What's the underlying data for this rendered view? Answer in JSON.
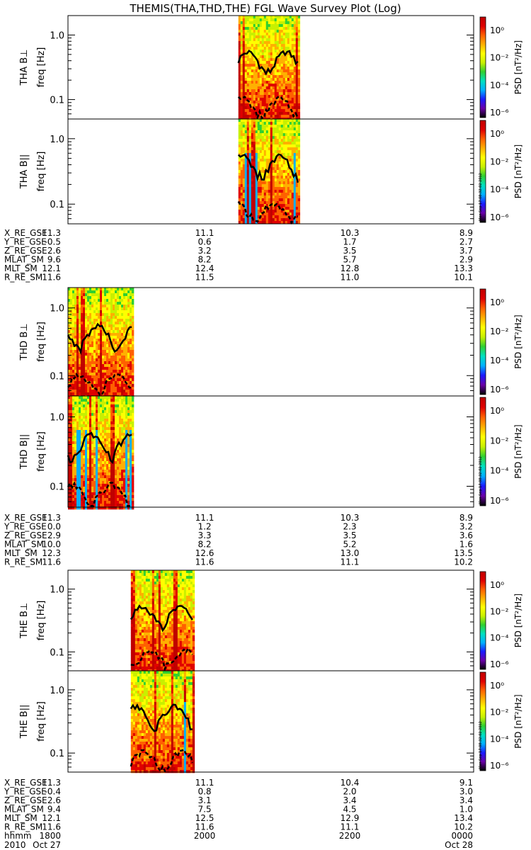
{
  "title": "THEMIS(THA,THD,THE) FGL Wave Survey Plot (Log)",
  "colorbar": {
    "label": "PSD [nT²/Hz]",
    "ticks": [
      "10⁰",
      "10⁻²",
      "10⁻⁴",
      "10⁻⁶"
    ],
    "stamp": "Mon Sep 17 08:32:02 2012",
    "colors": [
      "#000000",
      "#6a00a8",
      "#1a1aff",
      "#00b0ff",
      "#00e0c0",
      "#30d030",
      "#c8f000",
      "#ffff00",
      "#ffb000",
      "#ff6000",
      "#e00000",
      "#c00000"
    ]
  },
  "chart_data": [
    {
      "type": "heatmap",
      "probe": "THA",
      "panels": [
        {
          "ylabel": "THA B⊥",
          "yunit": "freq [Hz]",
          "yticks": [
            "1.0",
            "0.1"
          ],
          "yscale": "log"
        },
        {
          "ylabel": "THA B||",
          "yunit": "freq [Hz]",
          "yticks": [
            "1.0",
            "0.1"
          ],
          "yscale": "log"
        }
      ],
      "data_interval": [
        0.42,
        0.57
      ],
      "ephemeris": [
        {
          "label": "X_RE_GSE",
          "values": [
            "11.3",
            "11.1",
            "10.3",
            "8.9"
          ]
        },
        {
          "label": "Y_RE_GSE",
          "values": [
            "-0.5",
            "0.6",
            "1.7",
            "2.7"
          ]
        },
        {
          "label": "Z_RE_GSE",
          "values": [
            "2.6",
            "3.2",
            "3.5",
            "3.7"
          ]
        },
        {
          "label": "MLAT_SM",
          "values": [
            "9.6",
            "8.2",
            "5.7",
            "2.9"
          ]
        },
        {
          "label": "MLT_SM",
          "values": [
            "12.1",
            "12.4",
            "12.8",
            "13.3"
          ]
        },
        {
          "label": "R_RE_SM",
          "values": [
            "11.6",
            "11.5",
            "11.0",
            "10.1"
          ]
        }
      ]
    },
    {
      "type": "heatmap",
      "probe": "THD",
      "panels": [
        {
          "ylabel": "THD B⊥",
          "yunit": "freq [Hz]",
          "yticks": [
            "1.0",
            "0.1"
          ],
          "yscale": "log"
        },
        {
          "ylabel": "THD B||",
          "yunit": "freq [Hz]",
          "yticks": [
            "1.0",
            "0.1"
          ],
          "yscale": "log"
        }
      ],
      "data_interval": [
        0.0,
        0.16
      ],
      "ephemeris": [
        {
          "label": "X_RE_GSE",
          "values": [
            "11.3",
            "11.1",
            "10.3",
            "8.9"
          ]
        },
        {
          "label": "Y_RE_GSE",
          "values": [
            "0.0",
            "1.2",
            "2.3",
            "3.2"
          ]
        },
        {
          "label": "Z_RE_GSE",
          "values": [
            "2.9",
            "3.3",
            "3.5",
            "3.6"
          ]
        },
        {
          "label": "MLAT_SM",
          "values": [
            "10.0",
            "8.2",
            "5.2",
            "1.6"
          ]
        },
        {
          "label": "MLT_SM",
          "values": [
            "12.3",
            "12.6",
            "13.0",
            "13.5"
          ]
        },
        {
          "label": "R_RE_SM",
          "values": [
            "11.6",
            "11.6",
            "11.1",
            "10.2"
          ]
        }
      ]
    },
    {
      "type": "heatmap",
      "probe": "THE",
      "panels": [
        {
          "ylabel": "THE B⊥",
          "yunit": "freq [Hz]",
          "yticks": [
            "1.0",
            "0.1"
          ],
          "yscale": "log"
        },
        {
          "ylabel": "THE B||",
          "yunit": "freq [Hz]",
          "yticks": [
            "1.0",
            "0.1"
          ],
          "yscale": "log"
        }
      ],
      "data_interval": [
        0.155,
        0.31
      ],
      "ephemeris": [
        {
          "label": "X_RE_GSE",
          "values": [
            "11.3",
            "11.1",
            "10.4",
            "9.1"
          ]
        },
        {
          "label": "Y_RE_GSE",
          "values": [
            "-0.4",
            "0.8",
            "2.0",
            "3.0"
          ]
        },
        {
          "label": "Z_RE_GSE",
          "values": [
            "2.6",
            "3.1",
            "3.4",
            "3.4"
          ]
        },
        {
          "label": "MLAT_SM",
          "values": [
            "9.4",
            "7.5",
            "4.5",
            "1.0"
          ]
        },
        {
          "label": "MLT_SM",
          "values": [
            "12.1",
            "12.5",
            "12.9",
            "13.4"
          ]
        },
        {
          "label": "R_RE_SM",
          "values": [
            "11.6",
            "11.6",
            "11.1",
            "10.2"
          ]
        }
      ]
    }
  ],
  "time_axis": {
    "label": "hhmm",
    "values": [
      "1800",
      "2000",
      "2200",
      "0000"
    ],
    "date_label": "2010",
    "dates": [
      "Oct 27",
      "Oct 28"
    ]
  }
}
